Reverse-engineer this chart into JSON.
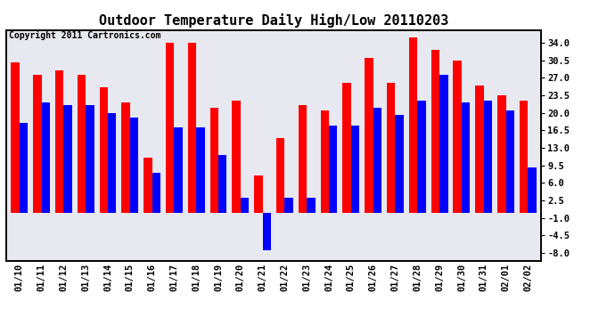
{
  "title": "Outdoor Temperature Daily High/Low 20110203",
  "copyright": "Copyright 2011 Cartronics.com",
  "dates": [
    "01/10",
    "01/11",
    "01/12",
    "01/13",
    "01/14",
    "01/15",
    "01/16",
    "01/17",
    "01/18",
    "01/19",
    "01/20",
    "01/21",
    "01/22",
    "01/23",
    "01/24",
    "01/25",
    "01/26",
    "01/27",
    "01/28",
    "01/29",
    "01/30",
    "01/31",
    "02/01",
    "02/02"
  ],
  "highs": [
    30.0,
    27.5,
    28.5,
    27.5,
    25.0,
    22.0,
    11.0,
    34.0,
    34.0,
    21.0,
    22.5,
    7.5,
    15.0,
    21.5,
    20.5,
    26.0,
    31.0,
    26.0,
    35.0,
    32.5,
    30.5,
    25.5,
    23.5,
    22.5
  ],
  "lows": [
    18.0,
    22.0,
    21.5,
    21.5,
    20.0,
    19.0,
    8.0,
    17.0,
    17.0,
    11.5,
    3.0,
    -7.5,
    3.0,
    3.0,
    17.5,
    17.5,
    21.0,
    19.5,
    22.5,
    27.5,
    22.0,
    22.5,
    20.5,
    9.0
  ],
  "high_color": "#ff0000",
  "low_color": "#0000ff",
  "bg_color": "#ffffff",
  "plot_bg": "#e8e8f0",
  "grid_color": "#b0b0b0",
  "ylim_min": -9.5,
  "ylim_max": 36.5,
  "yticks": [
    34.0,
    30.5,
    27.0,
    23.5,
    20.0,
    16.5,
    13.0,
    9.5,
    6.0,
    2.5,
    -1.0,
    -4.5,
    -8.0
  ],
  "bar_width": 0.38,
  "title_fontsize": 11,
  "tick_fontsize": 7.5,
  "copyright_fontsize": 7
}
